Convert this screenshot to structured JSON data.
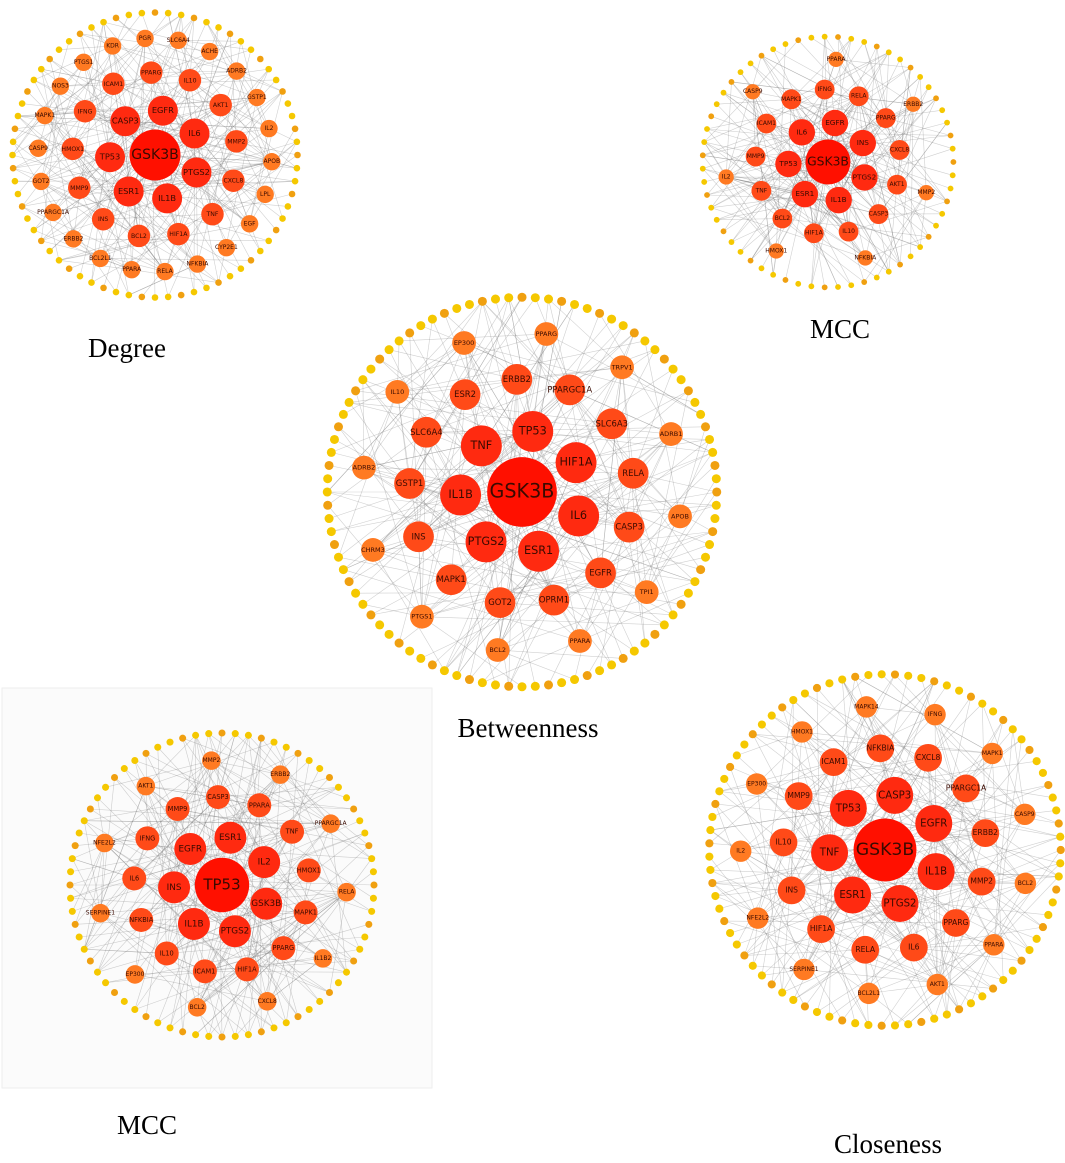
{
  "networks": [
    {
      "caption": "Degree",
      "nodes": [
        "GSK3B",
        "PTGS2",
        "IL1B",
        "ESR1",
        "TP53",
        "CASP3",
        "EGFR",
        "IL6",
        "TNF",
        "HIF1A",
        "BCL2",
        "INS",
        "MMP9",
        "HMOX1",
        "IFNG",
        "ICAM1",
        "PPARG",
        "IL10",
        "AKT1",
        "MMP2",
        "CXCL8",
        "NFKBIA",
        "RELA",
        "PPARA",
        "BCL2L1",
        "ERBB2",
        "PPARGC1A",
        "GOT2",
        "CASP9",
        "MAPK1",
        "NOS3",
        "PTGS1",
        "KDR",
        "PGR",
        "SLC6A4",
        "ACHE",
        "ADRB2",
        "GSTP1",
        "IL2",
        "APOB",
        "LPL",
        "EGF",
        "CYP2E1"
      ]
    },
    {
      "caption": "MCC",
      "nodes": [
        "GSK3B",
        "PTGS2",
        "IL1B",
        "ESR1",
        "TP53",
        "IL6",
        "EGFR",
        "INS",
        "CASP3",
        "IL10",
        "HIF1A",
        "BCL2",
        "TNF",
        "MMP9",
        "ICAM1",
        "MAPK1",
        "IFNG",
        "RELA",
        "PPARG",
        "CXCL8",
        "AKT1",
        "NFKBIA",
        "HMOX1",
        "IL2",
        "CASP9",
        "PPARA",
        "ERBB2",
        "MMP2"
      ]
    },
    {
      "caption": "Betweenness",
      "nodes": [
        "GSK3B",
        "IL6",
        "ESR1",
        "PTGS2",
        "IL1B",
        "TNF",
        "TP53",
        "HIF1A",
        "EGFR",
        "OPRM1",
        "GOT2",
        "MAPK1",
        "INS",
        "GSTP1",
        "SLC6A4",
        "ESR2",
        "ERBB2",
        "PPARGC1A",
        "SLC6A3",
        "RELA",
        "CASP3",
        "PPARA",
        "BCL2",
        "PTGS1",
        "CHRM3",
        "ADRB2",
        "IL10",
        "EP300",
        "PPARG",
        "TRPV1",
        "ADRB1",
        "APOB",
        "TPI1"
      ]
    },
    {
      "caption": "MCC",
      "nodes": [
        "TP53",
        "GSK3B",
        "PTGS2",
        "IL1B",
        "INS",
        "EGFR",
        "ESR1",
        "IL2",
        "PPARG",
        "HIF1A",
        "ICAM1",
        "IL10",
        "NFKBIA",
        "IL6",
        "IFNG",
        "MMP9",
        "CASP3",
        "PPARA",
        "TNF",
        "HMOX1",
        "MAPK1",
        "CXCL8",
        "BCL2",
        "EP300",
        "SERPINE1",
        "NFE2L2",
        "AKT1",
        "MMP2",
        "ERBB2",
        "PPARGC1A",
        "RELA",
        "IL1B2"
      ]
    },
    {
      "caption": "Closeness",
      "nodes": [
        "GSK3B",
        "IL1B",
        "PTGS2",
        "ESR1",
        "TNF",
        "TP53",
        "CASP3",
        "EGFR",
        "PPARG",
        "IL6",
        "RELA",
        "HIF1A",
        "INS",
        "IL10",
        "MMP9",
        "ICAM1",
        "NFKBIA",
        "CXCL8",
        "PPARGC1A",
        "ERBB2",
        "MMP2",
        "AKT1",
        "BCL2L1",
        "SERPINE1",
        "NFE2L2",
        "IL2",
        "EP300",
        "HMOX1",
        "MAPK14",
        "IFNG",
        "MAPK1",
        "CASP9",
        "BCL2",
        "PPARA"
      ]
    }
  ]
}
